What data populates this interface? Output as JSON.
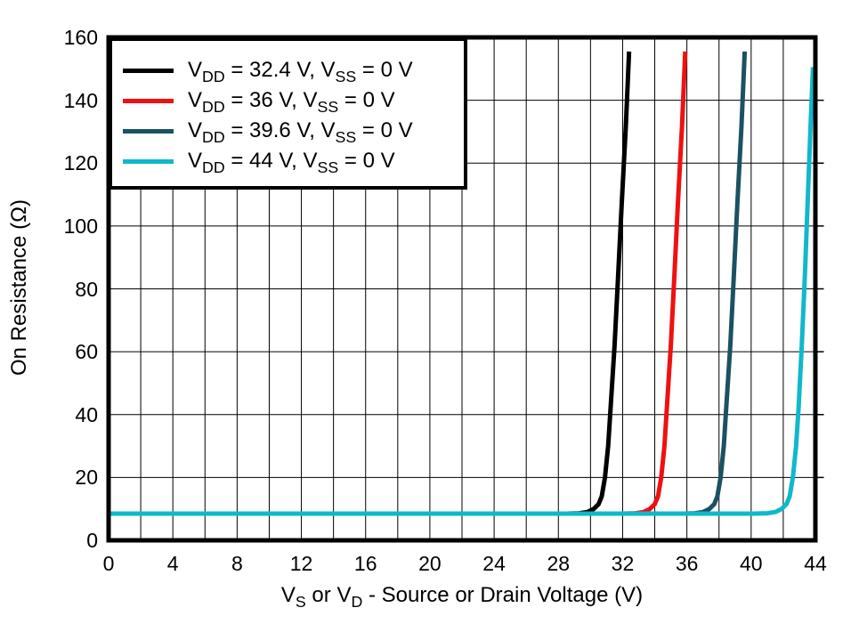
{
  "figure": {
    "background": "#ffffff",
    "frame_color": "#000000",
    "grid_color": "#000000",
    "y_axis_title": "On Resistance (Ω)",
    "x_axis_title_plain": "VS or VD - Source or Drain Voltage (V)",
    "x_axis_title_parts": [
      {
        "t": "V"
      },
      {
        "sub": "S"
      },
      {
        "t": " or V"
      },
      {
        "sub": "D"
      },
      {
        "t": " - Source or Drain Voltage (V)"
      }
    ]
  },
  "legend": {
    "position": "upper-left",
    "entries": [
      {
        "color": "#000000",
        "label_plain": "VDD = 32.4 V, VSS = 0 V",
        "parts": [
          {
            "t": "V"
          },
          {
            "sub": "DD"
          },
          {
            "t": " = 32.4 V, V"
          },
          {
            "sub": "SS"
          },
          {
            "t": " = 0 V"
          }
        ]
      },
      {
        "color": "#EE1111",
        "label_plain": "VDD = 36 V, VSS = 0 V",
        "parts": [
          {
            "t": "V"
          },
          {
            "sub": "DD"
          },
          {
            "t": " = 36 V, V"
          },
          {
            "sub": "SS"
          },
          {
            "t": " = 0 V"
          }
        ]
      },
      {
        "color": "#1B5162",
        "label_plain": "VDD = 39.6 V, VSS = 0 V",
        "parts": [
          {
            "t": "V"
          },
          {
            "sub": "DD"
          },
          {
            "t": " = 39.6 V, V"
          },
          {
            "sub": "SS"
          },
          {
            "t": " = 0 V"
          }
        ]
      },
      {
        "color": "#10B8CB",
        "label_plain": "VDD = 44 V, VSS = 0 V",
        "parts": [
          {
            "t": "V"
          },
          {
            "sub": "DD"
          },
          {
            "t": " = 44 V, V"
          },
          {
            "sub": "SS"
          },
          {
            "t": " = 0 V"
          }
        ]
      }
    ]
  },
  "chart_data": {
    "type": "line",
    "title": "",
    "xlabel": "VS or VD - Source or Drain Voltage (V)",
    "ylabel": "On Resistance (Ω)",
    "xlim": [
      0,
      44
    ],
    "ylim": [
      0,
      160
    ],
    "x_ticks": [
      0,
      4,
      8,
      12,
      16,
      20,
      24,
      28,
      32,
      36,
      40,
      44
    ],
    "y_ticks": [
      0,
      20,
      40,
      60,
      80,
      100,
      120,
      140,
      160
    ],
    "x_grid_step": 2,
    "y_grid_step": 20,
    "grid": true,
    "legend_position": "upper-left",
    "flat_on_resistance_ohms": 8.5,
    "series": [
      {
        "name": "VDD = 32.4 V, VSS = 0 V",
        "color": "#000000",
        "points": [
          [
            0,
            8.5
          ],
          [
            28.5,
            8.5
          ],
          [
            29.3,
            8.6
          ],
          [
            29.8,
            9.0
          ],
          [
            30.2,
            10
          ],
          [
            30.5,
            11.5
          ],
          [
            30.7,
            14
          ],
          [
            30.9,
            20
          ],
          [
            31.1,
            30
          ],
          [
            31.25,
            42
          ],
          [
            31.5,
            62
          ],
          [
            31.7,
            82
          ],
          [
            31.95,
            108
          ],
          [
            32.2,
            132
          ],
          [
            32.4,
            155.5
          ]
        ]
      },
      {
        "name": "VDD = 36 V, VSS = 0 V",
        "color": "#EE1111",
        "points": [
          [
            0,
            8.5
          ],
          [
            32.0,
            8.5
          ],
          [
            32.8,
            8.6
          ],
          [
            33.3,
            9.0
          ],
          [
            33.7,
            10
          ],
          [
            34.0,
            11.5
          ],
          [
            34.2,
            14
          ],
          [
            34.4,
            20
          ],
          [
            34.6,
            30
          ],
          [
            34.75,
            42
          ],
          [
            35.0,
            62
          ],
          [
            35.2,
            82
          ],
          [
            35.45,
            108
          ],
          [
            35.7,
            132
          ],
          [
            35.9,
            155.5
          ]
        ]
      },
      {
        "name": "VDD = 39.6 V, VSS = 0 V",
        "color": "#1B5162",
        "points": [
          [
            0,
            8.5
          ],
          [
            35.8,
            8.5
          ],
          [
            36.5,
            8.6
          ],
          [
            37.0,
            9.0
          ],
          [
            37.4,
            10
          ],
          [
            37.7,
            11.5
          ],
          [
            37.9,
            14
          ],
          [
            38.1,
            20
          ],
          [
            38.3,
            30
          ],
          [
            38.45,
            42
          ],
          [
            38.7,
            62
          ],
          [
            38.9,
            82
          ],
          [
            39.15,
            108
          ],
          [
            39.4,
            132
          ],
          [
            39.6,
            155.5
          ]
        ]
      },
      {
        "name": "VDD = 44 V, VSS = 0 V",
        "color": "#10B8CB",
        "points": [
          [
            0,
            8.5
          ],
          [
            40.2,
            8.5
          ],
          [
            41.0,
            8.6
          ],
          [
            41.5,
            9.0
          ],
          [
            41.9,
            10
          ],
          [
            42.2,
            11.5
          ],
          [
            42.4,
            14
          ],
          [
            42.6,
            20
          ],
          [
            42.8,
            30
          ],
          [
            42.95,
            42
          ],
          [
            43.15,
            62
          ],
          [
            43.35,
            85
          ],
          [
            43.55,
            112
          ],
          [
            43.7,
            132
          ],
          [
            43.85,
            150.5
          ]
        ]
      }
    ]
  }
}
